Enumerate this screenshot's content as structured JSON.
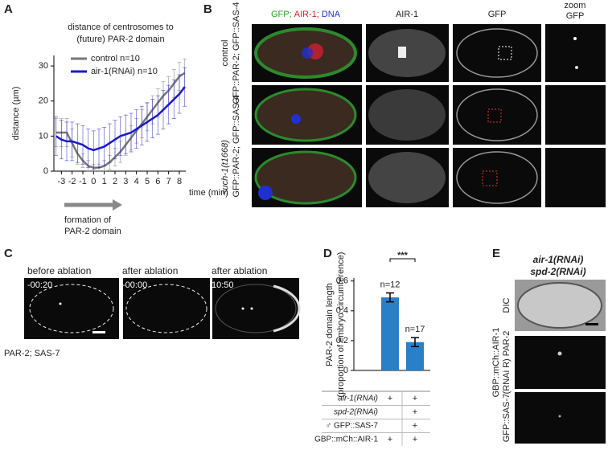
{
  "panel_labels": [
    "A",
    "B",
    "C",
    "D",
    "E"
  ],
  "chart_data": [
    {
      "type": "line",
      "title": [
        "distance of centrosomes to",
        "(future) PAR-2 domain"
      ],
      "ylabel": "distance (µm)",
      "xlabel": "time (min)",
      "x": [
        -3.5,
        -3,
        -2.5,
        -2,
        -1.5,
        -1,
        -0.5,
        0,
        0.5,
        1,
        1.5,
        2,
        2.5,
        3,
        3.5,
        4,
        4.5,
        5,
        5.5,
        6,
        6.5,
        7,
        7.5,
        8,
        8.5
      ],
      "series": [
        {
          "name": "control n=10",
          "color": "#777777",
          "values": [
            11,
            11,
            11,
            8,
            5,
            3,
            1.5,
            1,
            1,
            1.5,
            2.5,
            4,
            5.5,
            7.5,
            9.5,
            11.5,
            13.5,
            15.5,
            17.5,
            19.5,
            21.5,
            23,
            25,
            27,
            28
          ],
          "errors": [
            4,
            4,
            4,
            4,
            3,
            2,
            1.5,
            1,
            1,
            1.5,
            2,
            2.5,
            3,
            3,
            3.5,
            3.5,
            4,
            4,
            4,
            4,
            4,
            4,
            4,
            4,
            4
          ]
        },
        {
          "name": "air-1(RNAi)  n=10",
          "color": "#1a1acc",
          "values": [
            10,
            9,
            8.5,
            8.5,
            8,
            7.5,
            6.5,
            6,
            6.5,
            7,
            8,
            9,
            10,
            10.5,
            11,
            12,
            13,
            14,
            15,
            16,
            17.5,
            19,
            20.5,
            22,
            24
          ],
          "errors": [
            5.5,
            5.5,
            5.5,
            5.5,
            5.5,
            5.5,
            5.5,
            5.5,
            5.5,
            5.5,
            5.5,
            5.5,
            5.5,
            5.5,
            5.5,
            5.5,
            5.5,
            5.5,
            5.5,
            5.5,
            5.5,
            5.5,
            5.5,
            5.5,
            5.5
          ]
        }
      ],
      "xlim": [
        -3.7,
        8.6
      ],
      "xticks": [
        -3,
        -2,
        -1,
        0,
        1,
        2,
        3,
        4,
        5,
        6,
        7,
        8
      ],
      "ylim": [
        0,
        33
      ],
      "yticks": [
        0,
        10,
        20,
        30
      ],
      "annotation": [
        "formation of",
        "PAR-2 domain"
      ]
    },
    {
      "type": "bar",
      "ylabel": [
        "PAR-2 domain length",
        "(proportion of embryo circumference)"
      ],
      "categories": [
        null,
        null
      ],
      "values": [
        0.49,
        0.19
      ],
      "errors": [
        0.03,
        0.03
      ],
      "value_labels": [
        "n=12",
        "n=17"
      ],
      "significance": "***",
      "color": "#2a7fc9",
      "ylim": [
        0,
        0.62
      ],
      "yticks": [
        0,
        0.2,
        0.4,
        0.6
      ],
      "condition_table": [
        {
          "label": "air-1(RNAi)",
          "cells": [
            "+",
            "+"
          ]
        },
        {
          "label": "spd-2(RNAi)",
          "cells": [
            null,
            "+"
          ]
        },
        {
          "label": "♂ GFP::SAS-7",
          "cells": [
            null,
            "+"
          ]
        },
        {
          "label": "GBP::mCh::AIR-1",
          "cells": [
            "+",
            "+"
          ]
        }
      ]
    }
  ],
  "panel_b": {
    "header_parts": [
      {
        "text": "GFP;",
        "color": "#2ca02c"
      },
      {
        "text": "AIR-1;",
        "color": "#e02020"
      },
      {
        "text": "DNA",
        "color": "#2030d0"
      }
    ],
    "headers": [
      "AIR-1",
      "GFP"
    ],
    "zoom_header": [
      "zoom",
      "GFP"
    ],
    "row1_labels": [
      "control",
      "GFP::PAR-2;  GFP::SAS-4"
    ],
    "row2_label": "GFP::PAR-2; GFP::SAS-4",
    "mutant_label": "such-1(t1668)"
  },
  "panel_c": {
    "headers": [
      "before ablation",
      "after ablation",
      "after ablation"
    ],
    "timestamps": [
      "-00:20",
      "-00:00",
      "10:50"
    ],
    "caption": "PAR-2; SAS-7"
  },
  "panel_e": {
    "title": [
      "air-1(RNAi)",
      "spd-2(RNAi)"
    ],
    "row_labels": [
      "DIC",
      "GFP::SAS-7"
    ],
    "middle_label": [
      "GBP::mCh::AIR-1",
      "(RNAi R)  PAR-2"
    ]
  }
}
